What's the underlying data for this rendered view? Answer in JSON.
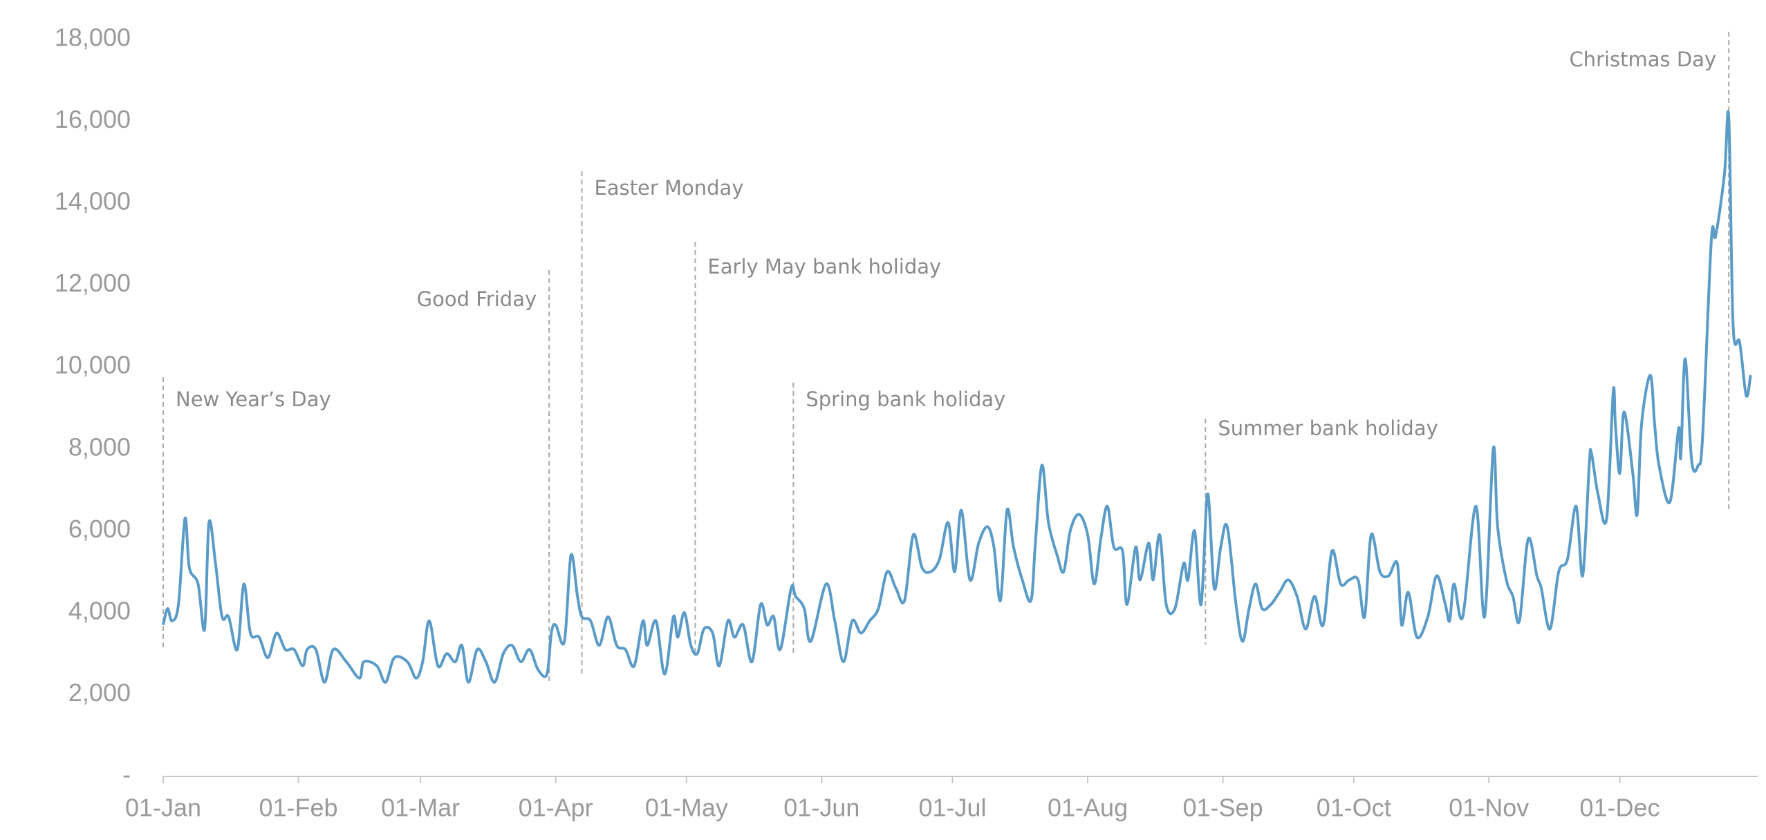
{
  "chart_data": {
    "type": "line",
    "x": [
      0,
      1,
      2,
      3.5,
      5,
      6,
      8,
      9.5,
      10.5,
      12,
      13.5,
      15,
      17,
      18.5,
      20,
      22,
      24,
      26,
      28,
      30,
      32,
      33,
      35,
      37,
      39,
      42,
      45,
      46,
      49,
      51,
      53,
      56,
      58,
      59.5,
      61,
      63,
      65,
      67,
      68.5,
      70,
      72,
      74,
      76,
      78,
      80,
      82,
      84,
      86,
      88,
      89,
      90,
      92,
      93.5,
      95,
      96,
      98,
      100,
      102,
      104,
      106,
      108,
      110,
      111,
      113,
      115,
      117,
      118,
      119.5,
      121,
      122.5,
      124,
      126,
      127.5,
      129.5,
      131,
      133,
      135,
      137,
      138.5,
      140,
      141.5,
      144,
      145,
      147,
      148.5,
      152,
      154,
      156,
      158,
      160,
      162,
      164,
      166,
      168,
      170,
      172,
      174,
      176,
      178,
      180,
      181.5,
      183,
      185,
      187,
      189,
      190.5,
      192,
      193.5,
      195,
      197,
      199,
      200,
      201.5,
      203,
      205,
      206.5,
      208,
      210,
      212,
      213.5,
      215,
      216.5,
      218,
      220,
      221,
      223,
      224,
      226,
      227,
      228.5,
      230,
      232,
      234,
      235,
      236.5,
      238,
      239.5,
      241,
      242.5,
      244,
      246,
      247.5,
      249,
      250.5,
      252,
      254,
      256,
      258,
      260,
      262,
      264,
      266,
      268,
      270,
      272,
      274,
      275.5,
      277,
      279,
      281,
      283,
      284,
      285.5,
      287.5,
      290,
      292,
      294,
      295,
      296,
      298,
      301,
      303,
      305,
      306,
      308,
      309.5,
      311,
      313,
      315,
      316,
      318,
      320,
      322,
      324,
      325.5,
      327,
      327.5,
      329,
      331,
      332.5,
      333,
      334,
      335,
      337,
      338,
      339,
      341,
      342,
      343,
      345.5,
      347.5,
      348,
      349,
      350.5,
      352,
      353,
      355,
      356,
      358,
      359,
      360,
      361.5,
      363,
      364
    ],
    "series": [
      {
        "color": "#5a9bc8",
        "values": [
          3700,
          4100,
          3800,
          4200,
          6300,
          5100,
          4700,
          3600,
          6200,
          5200,
          3900,
          3900,
          3100,
          4700,
          3500,
          3400,
          2900,
          3500,
          3100,
          3100,
          2700,
          3100,
          3100,
          2300,
          3100,
          2800,
          2400,
          2800,
          2700,
          2300,
          2900,
          2800,
          2400,
          2800,
          3800,
          2700,
          3000,
          2800,
          3200,
          2300,
          3100,
          2800,
          2300,
          3000,
          3200,
          2800,
          3100,
          2600,
          2500,
          3500,
          3700,
          3300,
          5400,
          4400,
          3900,
          3800,
          3200,
          3900,
          3200,
          3100,
          2700,
          3800,
          3200,
          3800,
          2500,
          3900,
          3400,
          4000,
          3200,
          3000,
          3600,
          3500,
          2700,
          3800,
          3400,
          3700,
          2800,
          4200,
          3700,
          3900,
          3100,
          4600,
          4400,
          4100,
          3300,
          4700,
          3800,
          2800,
          3800,
          3500,
          3800,
          4100,
          5000,
          4600,
          4300,
          5900,
          5100,
          5000,
          5300,
          6200,
          5000,
          6500,
          4800,
          5700,
          6100,
          5600,
          4300,
          6500,
          5600,
          4800,
          4300,
          5700,
          7600,
          6200,
          5400,
          5000,
          6000,
          6400,
          5900,
          4700,
          5800,
          6600,
          5600,
          5500,
          4200,
          5600,
          4800,
          5700,
          4800,
          5900,
          4200,
          4100,
          5200,
          4800,
          6000,
          4200,
          6900,
          4600,
          5600,
          6100,
          4200,
          3300,
          4100,
          4700,
          4100,
          4200,
          4500,
          4800,
          4400,
          3600,
          4400,
          3700,
          5500,
          4700,
          4800,
          4800,
          3900,
          5900,
          5000,
          4900,
          5200,
          3700,
          4500,
          3400,
          3900,
          4900,
          4200,
          3800,
          4700,
          3900,
          6600,
          3900,
          8000,
          6100,
          4800,
          4400,
          3800,
          5800,
          4900,
          4600,
          3600,
          5000,
          5300,
          6600,
          4900,
          7600,
          7900,
          6900,
          6300,
          9400,
          8600,
          7400,
          8900,
          7400,
          6400,
          8600,
          9800,
          8600,
          7600,
          6700,
          8500,
          7800,
          10200,
          7700,
          7600,
          8300,
          13100,
          13200,
          14700,
          16100,
          11000,
          10600,
          9300,
          9800
        ]
      }
    ],
    "xlim": [
      0,
      365
    ],
    "xticks": [
      {
        "value": 0,
        "label": "01-Jan"
      },
      {
        "value": 31,
        "label": "01-Feb"
      },
      {
        "value": 59,
        "label": "01-Mar"
      },
      {
        "value": 90,
        "label": "01-Apr"
      },
      {
        "value": 120,
        "label": "01-May"
      },
      {
        "value": 151,
        "label": "01-Jun"
      },
      {
        "value": 181,
        "label": "01-Jul"
      },
      {
        "value": 212,
        "label": "01-Aug"
      },
      {
        "value": 243,
        "label": "01-Sep"
      },
      {
        "value": 273,
        "label": "01-Oct"
      },
      {
        "value": 304,
        "label": "01-Nov"
      },
      {
        "value": 334,
        "label": "01-Dec"
      }
    ],
    "ylim": [
      0,
      18000
    ],
    "yticks": [
      {
        "value": 0,
        "label": "-"
      },
      {
        "value": 2000,
        "label": "2,000"
      },
      {
        "value": 4000,
        "label": "4,000"
      },
      {
        "value": 6000,
        "label": "6,000"
      },
      {
        "value": 8000,
        "label": "8,000"
      },
      {
        "value": 10000,
        "label": "10,000"
      },
      {
        "value": 12000,
        "label": "12,000"
      },
      {
        "value": 14000,
        "label": "14,000"
      },
      {
        "value": 16000,
        "label": "16,000"
      },
      {
        "value": 18000,
        "label": "18,000"
      }
    ],
    "annotations": [
      {
        "text": "New Year’s Day",
        "x": 0
      },
      {
        "text": "Good Friday",
        "x": 88.5
      },
      {
        "text": "Easter Monday",
        "x": 96
      },
      {
        "text": "Early May bank holiday",
        "x": 122
      },
      {
        "text": "Spring bank holiday",
        "x": 144.5
      },
      {
        "text": "Summer bank holiday",
        "x": 239
      },
      {
        "text": "Christmas Day",
        "x": 359
      }
    ]
  }
}
